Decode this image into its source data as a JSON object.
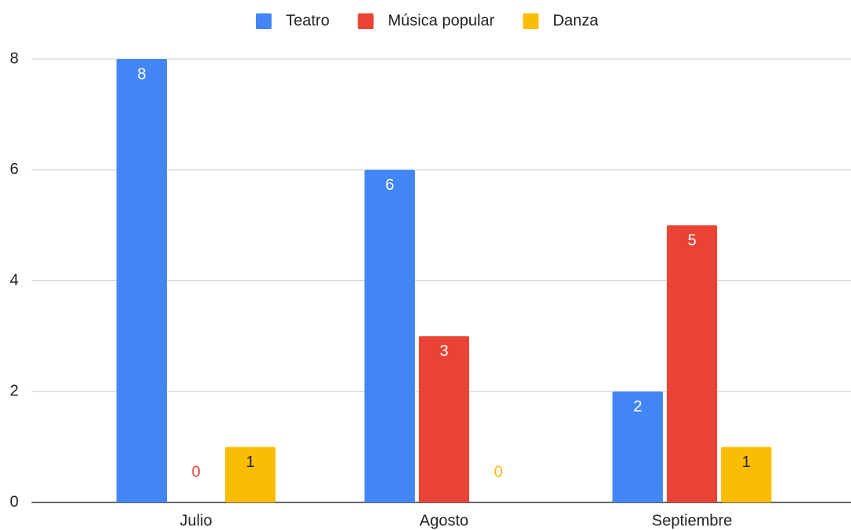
{
  "chart_data": {
    "type": "bar",
    "categories": [
      "Julio",
      "Agosto",
      "Septiembre"
    ],
    "series": [
      {
        "name": "Teatro",
        "color": "#4285f4",
        "values": [
          8,
          6,
          2
        ]
      },
      {
        "name": "Música popular",
        "color": "#ea4335",
        "values": [
          0,
          3,
          5
        ]
      },
      {
        "name": "Danza",
        "color": "#fbbc04",
        "values": [
          1,
          0,
          1
        ]
      }
    ],
    "ylim": [
      0,
      8
    ],
    "yticks": [
      0,
      2,
      4,
      6,
      8
    ],
    "grid": true,
    "legend": "top"
  }
}
